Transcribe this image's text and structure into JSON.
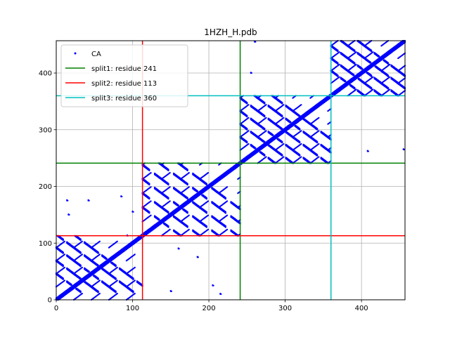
{
  "chart_data": {
    "type": "scatter",
    "title": "1HZH_H.pdb",
    "xlabel": "",
    "ylabel": "",
    "xlim": [
      0,
      457
    ],
    "ylim": [
      0,
      457
    ],
    "grid": true,
    "legend_placement": "top-left",
    "x_ticks": [
      0,
      100,
      200,
      300,
      400
    ],
    "y_ticks": [
      0,
      100,
      200,
      300,
      400
    ],
    "series": [
      {
        "name": "CA",
        "kind": "points",
        "color": "#0000ff",
        "contact_blocks": [
          {
            "range": [
              0,
              113
            ],
            "antiparallel_period": 23
          },
          {
            "range": [
              113,
              241
            ],
            "antiparallel_period": 25
          },
          {
            "range": [
              241,
              360
            ],
            "antiparallel_period": 23
          },
          {
            "range": [
              360,
              457
            ],
            "antiparallel_period": 22
          }
        ],
        "extra_points": [
          [
            14,
            175
          ],
          [
            16,
            150
          ],
          [
            42,
            175
          ],
          [
            85,
            182
          ],
          [
            93,
            113
          ],
          [
            185,
            75
          ],
          [
            205,
            25
          ],
          [
            215,
            10
          ],
          [
            255,
            400
          ],
          [
            408,
            262
          ],
          [
            455,
            265
          ],
          [
            260,
            455
          ],
          [
            150,
            15
          ],
          [
            160,
            90
          ],
          [
            100,
            155
          ]
        ]
      },
      {
        "name": "split1: residue 241",
        "kind": "split",
        "residue": 241,
        "color": "#008000"
      },
      {
        "name": "split2: residue 113",
        "kind": "split",
        "residue": 113,
        "color": "#ff0000"
      },
      {
        "name": "split3: residue 360",
        "kind": "split",
        "residue": 360,
        "color": "#00bfbf"
      }
    ]
  }
}
